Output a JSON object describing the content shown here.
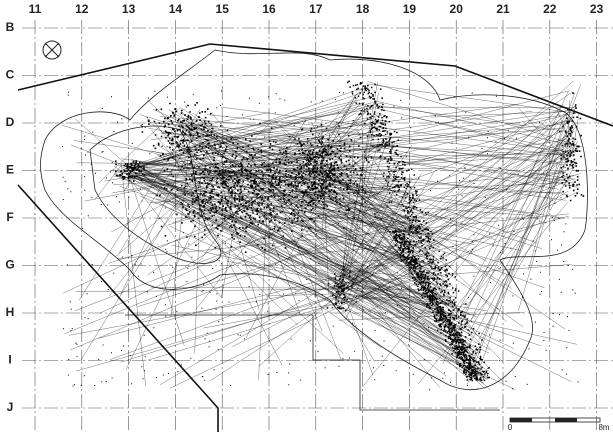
{
  "columns": [
    "11",
    "12",
    "13",
    "14",
    "15",
    "16",
    "17",
    "18",
    "19",
    "20",
    "21",
    "22",
    "23"
  ],
  "rows": [
    "B",
    "C",
    "D",
    "E",
    "F",
    "G",
    "H",
    "I",
    "J"
  ],
  "scale": {
    "start": "0",
    "end": "8m"
  }
}
